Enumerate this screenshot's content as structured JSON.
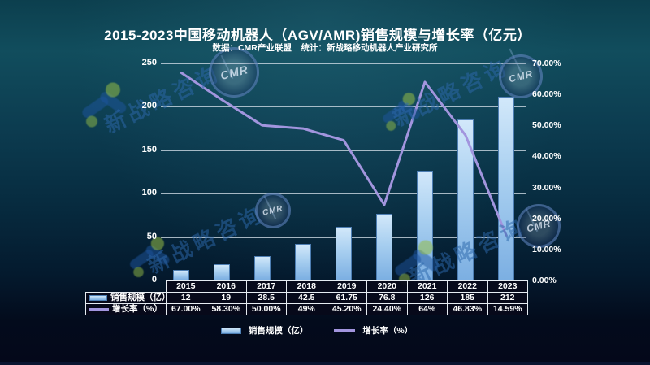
{
  "title": "2015-2023中国移动机器人（AGV/AMR)销售规模与增长率（亿元）",
  "subtitle": "数据：CMR产业联盟    统计：新战略移动机器人产业研究所",
  "watermark": {
    "text": "新战略咨询",
    "badge_label": "CMR"
  },
  "chart_data": {
    "type": "bar+line combo",
    "categories": [
      "2015",
      "2016",
      "2017",
      "2018",
      "2019",
      "2020",
      "2021",
      "2022",
      "2023"
    ],
    "series": [
      {
        "name": "销售规模（亿）",
        "type": "bar",
        "axis": "left",
        "values": [
          12,
          19,
          28.5,
          42.5,
          61.75,
          76.8,
          126,
          185,
          212
        ],
        "display": [
          "12",
          "19",
          "28.5",
          "42.5",
          "61.75",
          "76.8",
          "126",
          "185",
          "212"
        ],
        "color": "#a8cff0"
      },
      {
        "name": "增长率（%）",
        "type": "line",
        "axis": "right",
        "values": [
          67.0,
          58.3,
          50.0,
          49,
          45.2,
          24.4,
          64,
          46.83,
          14.59
        ],
        "display": [
          "67.00%",
          "58.30%",
          "50.00%",
          "49%",
          "45.20%",
          "24.40%",
          "64%",
          "46.83%",
          "14.59%"
        ],
        "color": "#a295de"
      }
    ],
    "left_axis": {
      "min": 0,
      "max": 250,
      "step": 50,
      "ticks": [
        "0",
        "50",
        "100",
        "150",
        "200",
        "250"
      ]
    },
    "right_axis": {
      "min": 0,
      "max": 70,
      "step": 10,
      "ticks": [
        "0.00%",
        "10.00%",
        "20.00%",
        "30.00%",
        "40.00%",
        "50.00%",
        "60.00%",
        "70.00%"
      ]
    },
    "grid": true,
    "legend_position": "bottom"
  },
  "table": {
    "row_headers": [
      "销售规模（亿）",
      "增长率（%）"
    ]
  },
  "legend": {
    "items": [
      {
        "label": "销售规模（亿）"
      },
      {
        "label": "增长率（%）"
      }
    ]
  },
  "colors": {
    "bar_fill": "#a8cff0",
    "bar_border": "#4d7eb3",
    "line": "#a295de",
    "background_top": "#114d5d",
    "background_bottom": "#04081a",
    "grid": "#cddae4",
    "table_border": "#e6ecf2"
  }
}
